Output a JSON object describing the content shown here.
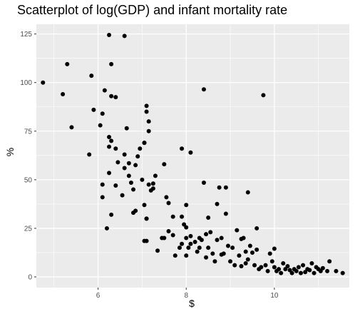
{
  "chart_data": {
    "type": "scatter",
    "title": "Scatterplot of log(GDP) and infant mortality rate",
    "xlabel": "$",
    "ylabel": "%",
    "xlim": [
      4.6,
      11.7
    ],
    "ylim": [
      -5.5,
      130
    ],
    "x_ticks": [
      6,
      8,
      10
    ],
    "y_ticks": [
      0,
      25,
      50,
      75,
      100,
      125
    ],
    "grid": true,
    "background_color": "#ebebeb",
    "grid_color": "#ffffff",
    "point_color": "#000000",
    "points": [
      [
        4.75,
        100
      ],
      [
        5.2,
        94
      ],
      [
        5.3,
        109.5
      ],
      [
        5.4,
        77
      ],
      [
        5.8,
        63
      ],
      [
        5.85,
        103.5
      ],
      [
        5.9,
        86
      ],
      [
        6.05,
        78
      ],
      [
        6.1,
        84
      ],
      [
        6.1,
        41
      ],
      [
        6.1,
        47.5
      ],
      [
        6.15,
        96
      ],
      [
        6.2,
        25
      ],
      [
        6.25,
        124.5
      ],
      [
        6.25,
        72
      ],
      [
        6.25,
        67
      ],
      [
        6.25,
        53.5
      ],
      [
        6.3,
        70
      ],
      [
        6.3,
        32
      ],
      [
        6.3,
        93
      ],
      [
        6.3,
        109.5
      ],
      [
        6.4,
        66
      ],
      [
        6.4,
        47
      ],
      [
        6.4,
        92.5
      ],
      [
        6.45,
        59
      ],
      [
        6.55,
        42
      ],
      [
        6.6,
        56
      ],
      [
        6.6,
        124
      ],
      [
        6.6,
        63
      ],
      [
        6.65,
        76.5
      ],
      [
        6.7,
        52
      ],
      [
        6.7,
        58.5
      ],
      [
        6.75,
        48.5
      ],
      [
        6.8,
        33
      ],
      [
        6.8,
        45
      ],
      [
        6.85,
        57.5
      ],
      [
        6.85,
        34
      ],
      [
        6.9,
        62
      ],
      [
        6.95,
        66
      ],
      [
        7.0,
        50
      ],
      [
        7.05,
        69
      ],
      [
        7.05,
        69
      ],
      [
        7.05,
        37
      ],
      [
        7.05,
        18.5
      ],
      [
        7.1,
        18.5
      ],
      [
        7.1,
        30
      ],
      [
        7.1,
        30
      ],
      [
        7.1,
        85
      ],
      [
        7.1,
        88
      ],
      [
        7.15,
        80
      ],
      [
        7.15,
        75
      ],
      [
        7.15,
        47.5
      ],
      [
        7.2,
        44.5
      ],
      [
        7.25,
        48
      ],
      [
        7.25,
        45.5
      ],
      [
        7.3,
        52
      ],
      [
        7.35,
        13.5
      ],
      [
        7.45,
        20
      ],
      [
        7.5,
        20
      ],
      [
        7.5,
        58
      ],
      [
        7.55,
        41
      ],
      [
        7.6,
        38
      ],
      [
        7.6,
        23.5
      ],
      [
        7.7,
        31
      ],
      [
        7.7,
        21.5
      ],
      [
        7.75,
        11
      ],
      [
        7.85,
        15
      ],
      [
        7.9,
        31
      ],
      [
        7.9,
        17
      ],
      [
        7.9,
        66
      ],
      [
        7.95,
        27
      ],
      [
        8.0,
        37
      ],
      [
        8.0,
        25.5
      ],
      [
        8.0,
        20
      ],
      [
        8.0,
        11
      ],
      [
        8.05,
        15
      ],
      [
        8.1,
        17
      ],
      [
        8.1,
        64
      ],
      [
        8.1,
        21
      ],
      [
        8.2,
        18
      ],
      [
        8.25,
        13
      ],
      [
        8.3,
        20
      ],
      [
        8.3,
        15
      ],
      [
        8.35,
        19
      ],
      [
        8.4,
        96.5
      ],
      [
        8.4,
        48.5
      ],
      [
        8.45,
        22
      ],
      [
        8.45,
        10
      ],
      [
        8.5,
        30.5
      ],
      [
        8.5,
        15
      ],
      [
        8.55,
        23
      ],
      [
        8.6,
        12
      ],
      [
        8.65,
        8
      ],
      [
        8.7,
        37.5
      ],
      [
        8.7,
        19
      ],
      [
        8.75,
        46
      ],
      [
        8.8,
        11.5
      ],
      [
        8.8,
        20
      ],
      [
        8.85,
        12
      ],
      [
        8.9,
        32.5
      ],
      [
        8.9,
        46
      ],
      [
        8.95,
        16
      ],
      [
        9.0,
        8
      ],
      [
        9.05,
        15
      ],
      [
        9.1,
        6
      ],
      [
        9.15,
        24
      ],
      [
        9.2,
        11
      ],
      [
        9.25,
        19.5
      ],
      [
        9.25,
        5.5
      ],
      [
        9.3,
        20
      ],
      [
        9.35,
        7
      ],
      [
        9.35,
        13
      ],
      [
        9.4,
        43.5
      ],
      [
        9.4,
        9
      ],
      [
        9.45,
        16
      ],
      [
        9.5,
        12.5
      ],
      [
        9.55,
        6
      ],
      [
        9.6,
        25
      ],
      [
        9.6,
        14
      ],
      [
        9.65,
        4
      ],
      [
        9.7,
        5
      ],
      [
        9.75,
        93.5
      ],
      [
        9.8,
        6
      ],
      [
        9.85,
        3
      ],
      [
        9.9,
        12
      ],
      [
        9.95,
        8
      ],
      [
        10.0,
        14.5
      ],
      [
        10.0,
        5
      ],
      [
        10.05,
        3
      ],
      [
        10.1,
        4
      ],
      [
        10.15,
        2
      ],
      [
        10.2,
        7
      ],
      [
        10.25,
        4
      ],
      [
        10.3,
        5.5
      ],
      [
        10.35,
        3.5
      ],
      [
        10.4,
        2
      ],
      [
        10.45,
        4
      ],
      [
        10.5,
        3
      ],
      [
        10.55,
        5
      ],
      [
        10.6,
        2
      ],
      [
        10.65,
        6
      ],
      [
        10.7,
        2.5
      ],
      [
        10.75,
        4
      ],
      [
        10.8,
        3.5
      ],
      [
        10.85,
        7
      ],
      [
        10.9,
        2
      ],
      [
        10.95,
        5
      ],
      [
        11.0,
        4
      ],
      [
        11.05,
        3
      ],
      [
        11.1,
        4.5
      ],
      [
        11.2,
        3
      ],
      [
        11.25,
        8
      ],
      [
        11.4,
        3
      ],
      [
        11.55,
        2
      ]
    ]
  }
}
